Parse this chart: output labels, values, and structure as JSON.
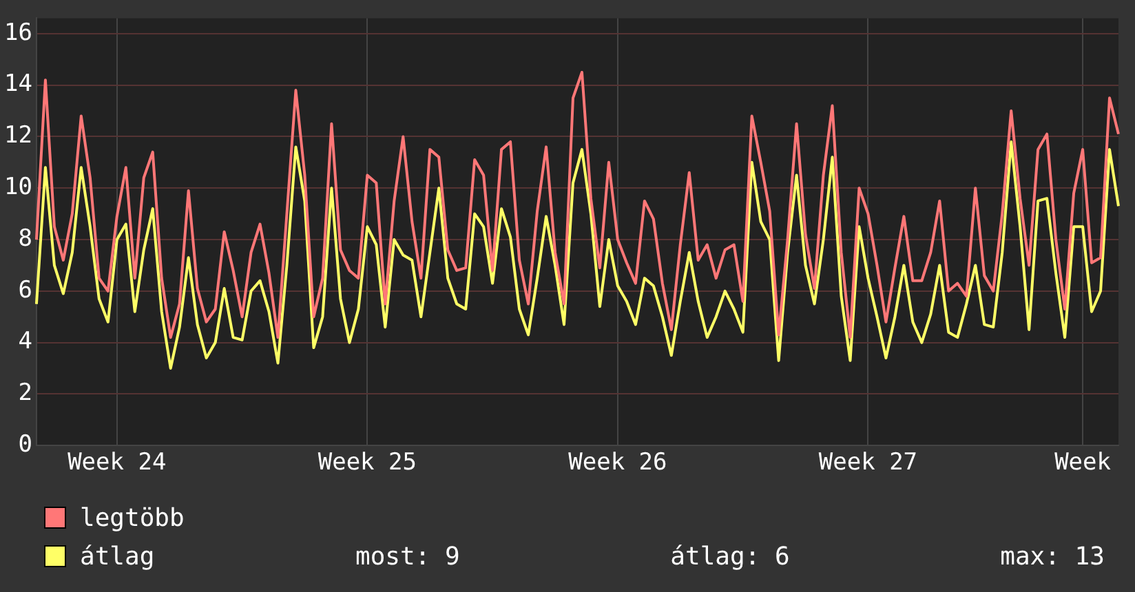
{
  "chart_data": {
    "type": "line",
    "categories": [
      null,
      null,
      null,
      null,
      null,
      null,
      null,
      null,
      null,
      "Week 24",
      null,
      null,
      null,
      null,
      null,
      null,
      null,
      null,
      null,
      null,
      null,
      null,
      null,
      null,
      null,
      null,
      null,
      null,
      null,
      null,
      null,
      null,
      null,
      null,
      null,
      null,
      null,
      "Week 25",
      null,
      null,
      null,
      null,
      null,
      null,
      null,
      null,
      null,
      null,
      null,
      null,
      null,
      null,
      null,
      null,
      null,
      null,
      null,
      null,
      null,
      null,
      null,
      null,
      null,
      null,
      null,
      "Week 26",
      null,
      null,
      null,
      null,
      null,
      null,
      null,
      null,
      null,
      null,
      null,
      null,
      null,
      null,
      null,
      null,
      null,
      null,
      null,
      null,
      null,
      null,
      null,
      null,
      null,
      null,
      null,
      "Week 27",
      null,
      null,
      null,
      null,
      null,
      null,
      null,
      null,
      null,
      null,
      null,
      null,
      null,
      null,
      null,
      null,
      null,
      null,
      null,
      null,
      null,
      null,
      null,
      "Week",
      null,
      null,
      null,
      null
    ],
    "series": [
      {
        "name": "legtöbb",
        "color": "#ff7777",
        "values": [
          8,
          14.2,
          8.5,
          7.2,
          9,
          12.8,
          10.4,
          6.5,
          6,
          8.9,
          10.8,
          6.5,
          10.4,
          11.4,
          6.5,
          4.2,
          5.5,
          9.9,
          6.1,
          4.8,
          5.3,
          8.3,
          6.8,
          5,
          7.5,
          8.6,
          6.7,
          4.2,
          9,
          13.8,
          10.5,
          5,
          6.5,
          12.5,
          7.6,
          6.8,
          6.5,
          10.5,
          10.2,
          5.5,
          9.5,
          12,
          8.7,
          6.5,
          11.5,
          11.2,
          7.6,
          6.8,
          6.9,
          11.1,
          10.5,
          6.8,
          11.5,
          11.8,
          7.2,
          5.5,
          9.1,
          11.6,
          7.5,
          5.5,
          13.5,
          14.5,
          9.6,
          6.9,
          11,
          8,
          7.1,
          6.3,
          9.5,
          8.8,
          6.3,
          4.5,
          7.8,
          10.6,
          7.2,
          7.8,
          6.5,
          7.6,
          7.8,
          5.6,
          12.8,
          11,
          9.1,
          4.3,
          8,
          12.5,
          8.2,
          6.1,
          10.5,
          13.2,
          7.5,
          4.2,
          10,
          9,
          7,
          4.8,
          6.9,
          8.9,
          6.4,
          6.4,
          7.5,
          9.5,
          6,
          6.3,
          5.8,
          10,
          6.6,
          6,
          9,
          13,
          9.6,
          7,
          11.5,
          12.1,
          8,
          5.3,
          9.8,
          11.5,
          7.1,
          7.3,
          13.5,
          12.1
        ]
      },
      {
        "name": "átlag",
        "color": "#ffff66",
        "values": [
          5.5,
          10.8,
          7,
          5.9,
          7.5,
          10.8,
          8.5,
          5.7,
          4.8,
          8,
          8.6,
          5.2,
          7.6,
          9.2,
          5.2,
          3,
          4.6,
          7.3,
          4.7,
          3.4,
          4,
          6.1,
          4.2,
          4.1,
          6,
          6.4,
          5.2,
          3.2,
          7,
          11.6,
          9.5,
          3.8,
          5,
          10,
          5.7,
          4,
          5.3,
          8.5,
          7.8,
          4.6,
          8,
          7.4,
          7.2,
          5,
          7.5,
          10,
          6.5,
          5.5,
          5.3,
          9,
          8.5,
          6.3,
          9.2,
          8.1,
          5.3,
          4.3,
          6.5,
          8.9,
          7,
          4.7,
          10.2,
          11.5,
          9,
          5.4,
          8,
          6.2,
          5.6,
          4.7,
          6.5,
          6.2,
          5,
          3.5,
          5.6,
          7.5,
          5.6,
          4.2,
          5,
          6,
          5.3,
          4.4,
          11,
          8.7,
          8,
          3.3,
          7.5,
          10.5,
          7,
          5.5,
          8,
          11.2,
          5.8,
          3.3,
          8.5,
          6.5,
          5,
          3.4,
          5,
          7,
          4.8,
          4,
          5.1,
          7,
          4.4,
          4.2,
          5.5,
          7,
          4.7,
          4.6,
          7.5,
          11.8,
          8.5,
          4.5,
          9.5,
          9.6,
          6.7,
          4.2,
          8.5,
          8.5,
          5.2,
          6,
          11.5,
          9.3
        ]
      }
    ],
    "ylim": [
      0,
      16.6
    ],
    "yticks": [
      0,
      2,
      4,
      6,
      8,
      10,
      12,
      14,
      16
    ],
    "grid": true,
    "legend": "bottom",
    "marker": "none",
    "line_style": "solid",
    "annotations": [
      "most: 9",
      "átlag: 6",
      "max: 13"
    ]
  }
}
